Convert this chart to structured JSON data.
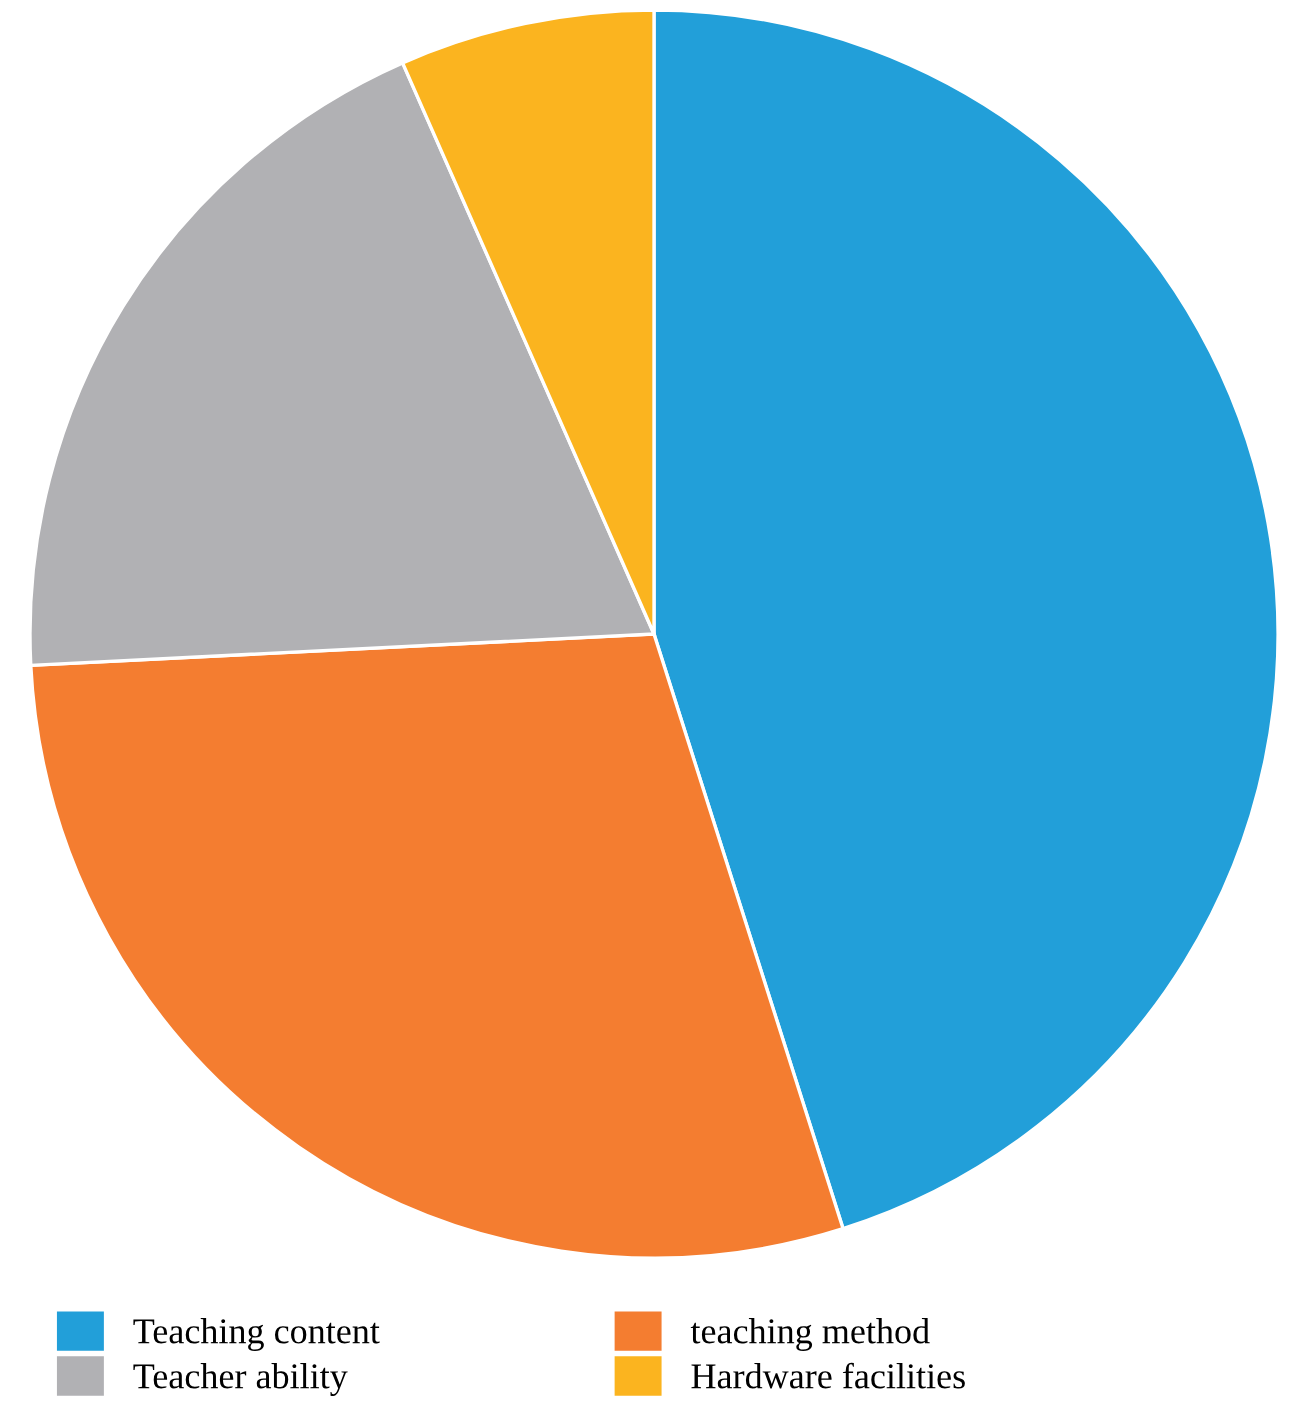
{
  "chart_data": {
    "type": "pie",
    "categories": [
      "Teaching content",
      "teaching method",
      "Teacher ability",
      "Hardware facilities"
    ],
    "values": [
      45.1,
      29.1,
      19.2,
      6.6
    ],
    "colors": [
      "#229fd9",
      "#f47d30",
      "#b1b1b4",
      "#fbb41f"
    ],
    "legend": "bottom"
  }
}
